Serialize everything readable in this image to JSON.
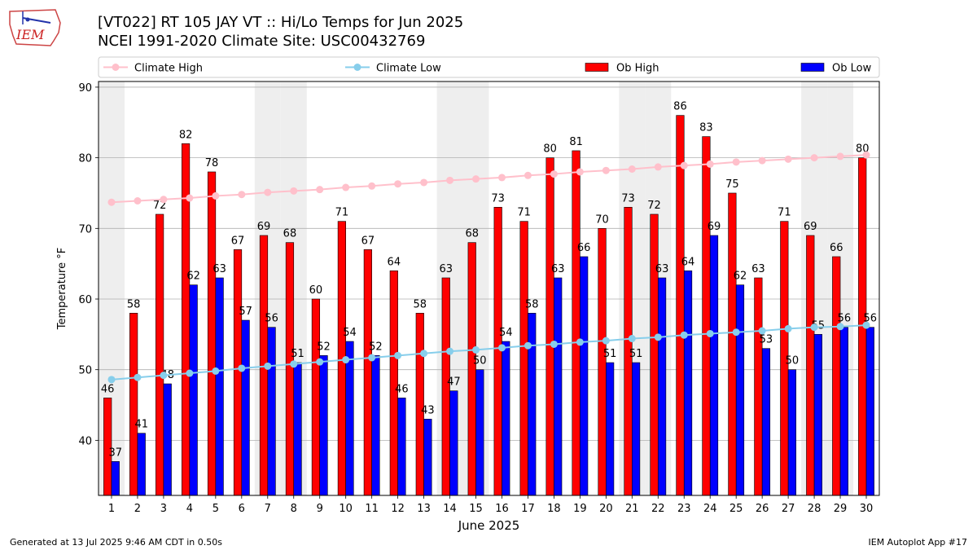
{
  "header": {
    "logo_text": "IEM",
    "title_line1": "[VT022] RT 105 JAY  VT :: Hi/Lo Temps for Jun 2025",
    "title_line2": "NCEI 1991-2020 Climate Site: USC00432769"
  },
  "footer": {
    "left": "Generated at 13 Jul 2025 9:46 AM CDT in 0.50s",
    "right": "IEM Autoplot App #17"
  },
  "colors": {
    "ob_high": "#ff0000",
    "ob_low": "#0000ff",
    "climate_high": "#ffc0cb",
    "climate_low": "#87ceeb",
    "weekend_shade": "#eeeeee",
    "grid": "#b0b0b0"
  },
  "chart_data": {
    "type": "bar",
    "xlabel": "June 2025",
    "ylabel": "Temperature °F",
    "ylim": [
      32.2,
      90.8
    ],
    "yticks": [
      40,
      50,
      60,
      70,
      80,
      90
    ],
    "grid": "horizontal",
    "legend_position": "top",
    "categories": [
      "1",
      "2",
      "3",
      "4",
      "5",
      "6",
      "7",
      "8",
      "9",
      "10",
      "11",
      "12",
      "13",
      "14",
      "15",
      "16",
      "17",
      "18",
      "19",
      "20",
      "21",
      "22",
      "23",
      "24",
      "25",
      "26",
      "27",
      "28",
      "29",
      "30"
    ],
    "weekend_days": [
      1,
      7,
      8,
      14,
      15,
      21,
      22,
      28,
      29
    ],
    "series": [
      {
        "name": "Climate High",
        "kind": "line",
        "values": [
          73.7,
          73.9,
          74.1,
          74.3,
          74.6,
          74.8,
          75.1,
          75.3,
          75.5,
          75.8,
          76.0,
          76.3,
          76.5,
          76.8,
          77.0,
          77.2,
          77.5,
          77.7,
          78.0,
          78.2,
          78.4,
          78.7,
          78.9,
          79.1,
          79.4,
          79.6,
          79.8,
          80.0,
          80.2,
          80.4
        ]
      },
      {
        "name": "Climate Low",
        "kind": "line",
        "values": [
          48.6,
          48.9,
          49.2,
          49.5,
          49.8,
          50.2,
          50.5,
          50.8,
          51.1,
          51.4,
          51.7,
          52.0,
          52.3,
          52.6,
          52.8,
          53.1,
          53.4,
          53.6,
          53.9,
          54.1,
          54.4,
          54.6,
          54.9,
          55.1,
          55.3,
          55.5,
          55.8,
          56.0,
          56.1,
          56.3
        ]
      },
      {
        "name": "Ob High",
        "kind": "bar",
        "values": [
          46,
          58,
          72,
          82,
          78,
          67,
          69,
          68,
          60,
          71,
          67,
          64,
          58,
          63,
          68,
          73,
          71,
          80,
          81,
          70,
          73,
          72,
          86,
          83,
          75,
          63,
          71,
          69,
          66,
          80
        ]
      },
      {
        "name": "Ob Low",
        "kind": "bar",
        "values": [
          37,
          41,
          48,
          62,
          63,
          57,
          56,
          51,
          52,
          54,
          52,
          46,
          43,
          47,
          50,
          54,
          58,
          63,
          66,
          51,
          51,
          63,
          64,
          69,
          62,
          53,
          50,
          55,
          56,
          56
        ]
      }
    ]
  }
}
